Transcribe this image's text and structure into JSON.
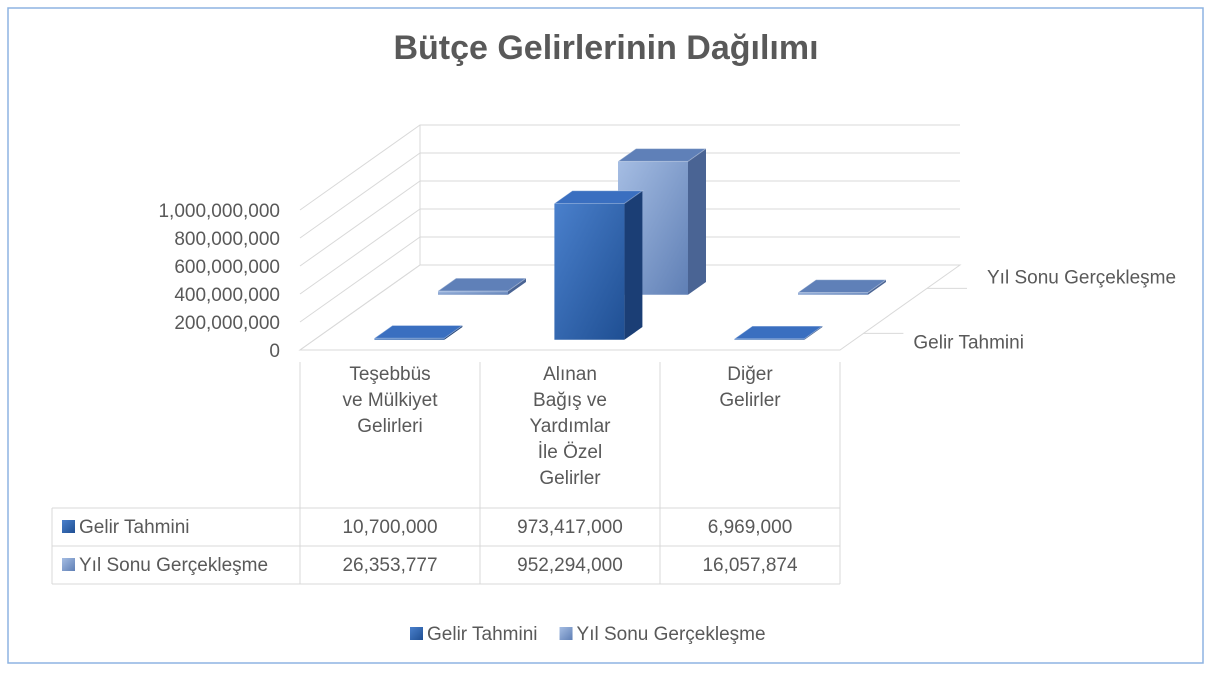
{
  "chart_data": {
    "type": "bar3d",
    "title": "Bütçe Gelirlerinin Dağılımı",
    "categories": [
      "Teşebbüs ve Mülkiyet Gelirleri",
      "Alınan Bağış ve Yardımlar İle Özel Gelirler",
      "Diğer Gelirler"
    ],
    "series": [
      {
        "name": "Gelir Tahmini",
        "color": "#2e63ae",
        "values": [
          10700000,
          973417000,
          6969000
        ],
        "value_labels": [
          "10,700,000",
          "973,417,000",
          "6,969,000"
        ]
      },
      {
        "name": "Yıl Sonu Gerçekleşme",
        "color": "#7f9fd3",
        "values": [
          26353777,
          952294000,
          16057874
        ],
        "value_labels": [
          "26,353,777",
          "952,294,000",
          "16,057,874"
        ]
      }
    ],
    "ylim": [
      0,
      1000000000
    ],
    "yticks": [
      0,
      {
        "value": 200000000,
        "label": "200,000,000"
      },
      {
        "value": 400000000,
        "label": "400,000,000"
      },
      {
        "value": 600000000,
        "label": "600,000,000"
      },
      {
        "value": 800000000,
        "label": "800,000,000"
      },
      {
        "value": 1000000000,
        "label": "1,000,000,000"
      }
    ],
    "grid": true,
    "legend": "bottom"
  }
}
